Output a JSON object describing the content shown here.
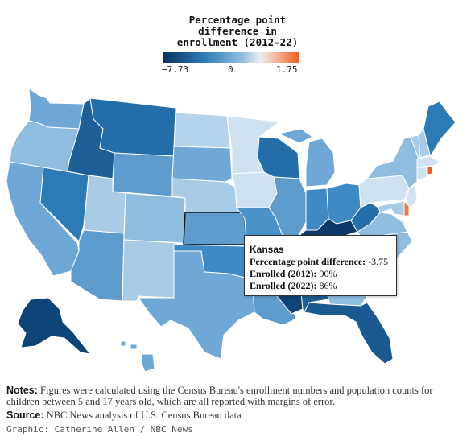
{
  "legend": {
    "title_lines": [
      "Percentage point",
      "difference in",
      "enrollment (2012-22)"
    ],
    "min_label": "−7.73",
    "mid_label": "0",
    "max_label": "1.75",
    "colors": [
      "#08335c",
      "#2f7cb6",
      "#8fbddf",
      "#e9eef3",
      "#ef5a1e"
    ]
  },
  "tooltip": {
    "state": "Kansas",
    "diff_label": "Percentage point difference:",
    "diff_value": "-3.75",
    "e2012_label": "Enrolled (2012):",
    "e2012_value": "90%",
    "e2022_label": "Enrolled (2022):",
    "e2022_value": "86%"
  },
  "notes": {
    "notes_label": "Notes:",
    "notes_text": " Figures were calculated using the Census Bureau's enrollment numbers and population counts for children between 5 and 17 years old, which are all reported with margins of error.",
    "source_label": "Source:",
    "source_text": " NBC News analysis of U.S. Census Bureau data",
    "credit": "Graphic: Catherine Allen / NBC News"
  },
  "chart_data": {
    "type": "choropleth",
    "title": "Percentage point difference in enrollment (2012-22)",
    "color_scale": {
      "min": -7.73,
      "mid": 0,
      "max": 1.75
    },
    "highlighted_state": "Kansas",
    "states": [
      {
        "name": "Washington",
        "color": "#6fa8d6"
      },
      {
        "name": "Oregon",
        "color": "#8fbddf"
      },
      {
        "name": "California",
        "color": "#6fa8d6"
      },
      {
        "name": "Nevada",
        "color": "#2c7bb6"
      },
      {
        "name": "Idaho",
        "color": "#1d5f96"
      },
      {
        "name": "Montana",
        "color": "#236da8"
      },
      {
        "name": "Wyoming",
        "color": "#5e9ccd"
      },
      {
        "name": "Utah",
        "color": "#a9cce6"
      },
      {
        "name": "Arizona",
        "color": "#5e9ccd"
      },
      {
        "name": "Colorado",
        "color": "#8fbddf"
      },
      {
        "name": "New Mexico",
        "color": "#a9cce6"
      },
      {
        "name": "North Dakota",
        "color": "#b5d3ea"
      },
      {
        "name": "South Dakota",
        "color": "#6fa8d6"
      },
      {
        "name": "Nebraska",
        "color": "#a9cce6"
      },
      {
        "name": "Kansas",
        "color": "#5e9ccd"
      },
      {
        "name": "Oklahoma",
        "color": "#3f8ac4"
      },
      {
        "name": "Texas",
        "color": "#6fa8d6"
      },
      {
        "name": "Minnesota",
        "color": "#cfe2f1"
      },
      {
        "name": "Iowa",
        "color": "#cfe2f1"
      },
      {
        "name": "Missouri",
        "color": "#4b92c9"
      },
      {
        "name": "Arkansas",
        "color": "#4b92c9"
      },
      {
        "name": "Louisiana",
        "color": "#5e9ccd"
      },
      {
        "name": "Wisconsin",
        "color": "#236da8"
      },
      {
        "name": "Illinois",
        "color": "#5e9ccd"
      },
      {
        "name": "Michigan",
        "color": "#6fa8d6"
      },
      {
        "name": "Indiana",
        "color": "#3f8ac4"
      },
      {
        "name": "Ohio",
        "color": "#3f8ac4"
      },
      {
        "name": "Kentucky",
        "color": "#0b3a68"
      },
      {
        "name": "Tennessee",
        "color": "#8fbddf"
      },
      {
        "name": "Mississippi",
        "color": "#0d4478"
      },
      {
        "name": "Alabama",
        "color": "#1d5f96"
      },
      {
        "name": "Georgia",
        "color": "#8fbddf"
      },
      {
        "name": "Florida",
        "color": "#1a5a90"
      },
      {
        "name": "South Carolina",
        "color": "#8fbddf"
      },
      {
        "name": "North Carolina",
        "color": "#8fbddf"
      },
      {
        "name": "Virginia",
        "color": "#8fbddf"
      },
      {
        "name": "West Virginia",
        "color": "#236da8"
      },
      {
        "name": "Pennsylvania",
        "color": "#cfe2f1"
      },
      {
        "name": "New York",
        "color": "#8fbddf"
      },
      {
        "name": "Vermont",
        "color": "#a9cce6"
      },
      {
        "name": "New Hampshire",
        "color": "#a9cce6"
      },
      {
        "name": "Maine",
        "color": "#2c7bb6"
      },
      {
        "name": "Massachusetts",
        "color": "#cfe2f1"
      },
      {
        "name": "Rhode Island",
        "color": "#ef5a1e"
      },
      {
        "name": "Connecticut",
        "color": "#cfe2f1"
      },
      {
        "name": "New Jersey",
        "color": "#cfe2f1"
      },
      {
        "name": "Delaware",
        "color": "#f07a3a"
      },
      {
        "name": "Maryland",
        "color": "#a9cce6"
      },
      {
        "name": "Alaska",
        "color": "#0d4478"
      },
      {
        "name": "Hawaii",
        "color": "#6fa8d6"
      }
    ]
  }
}
